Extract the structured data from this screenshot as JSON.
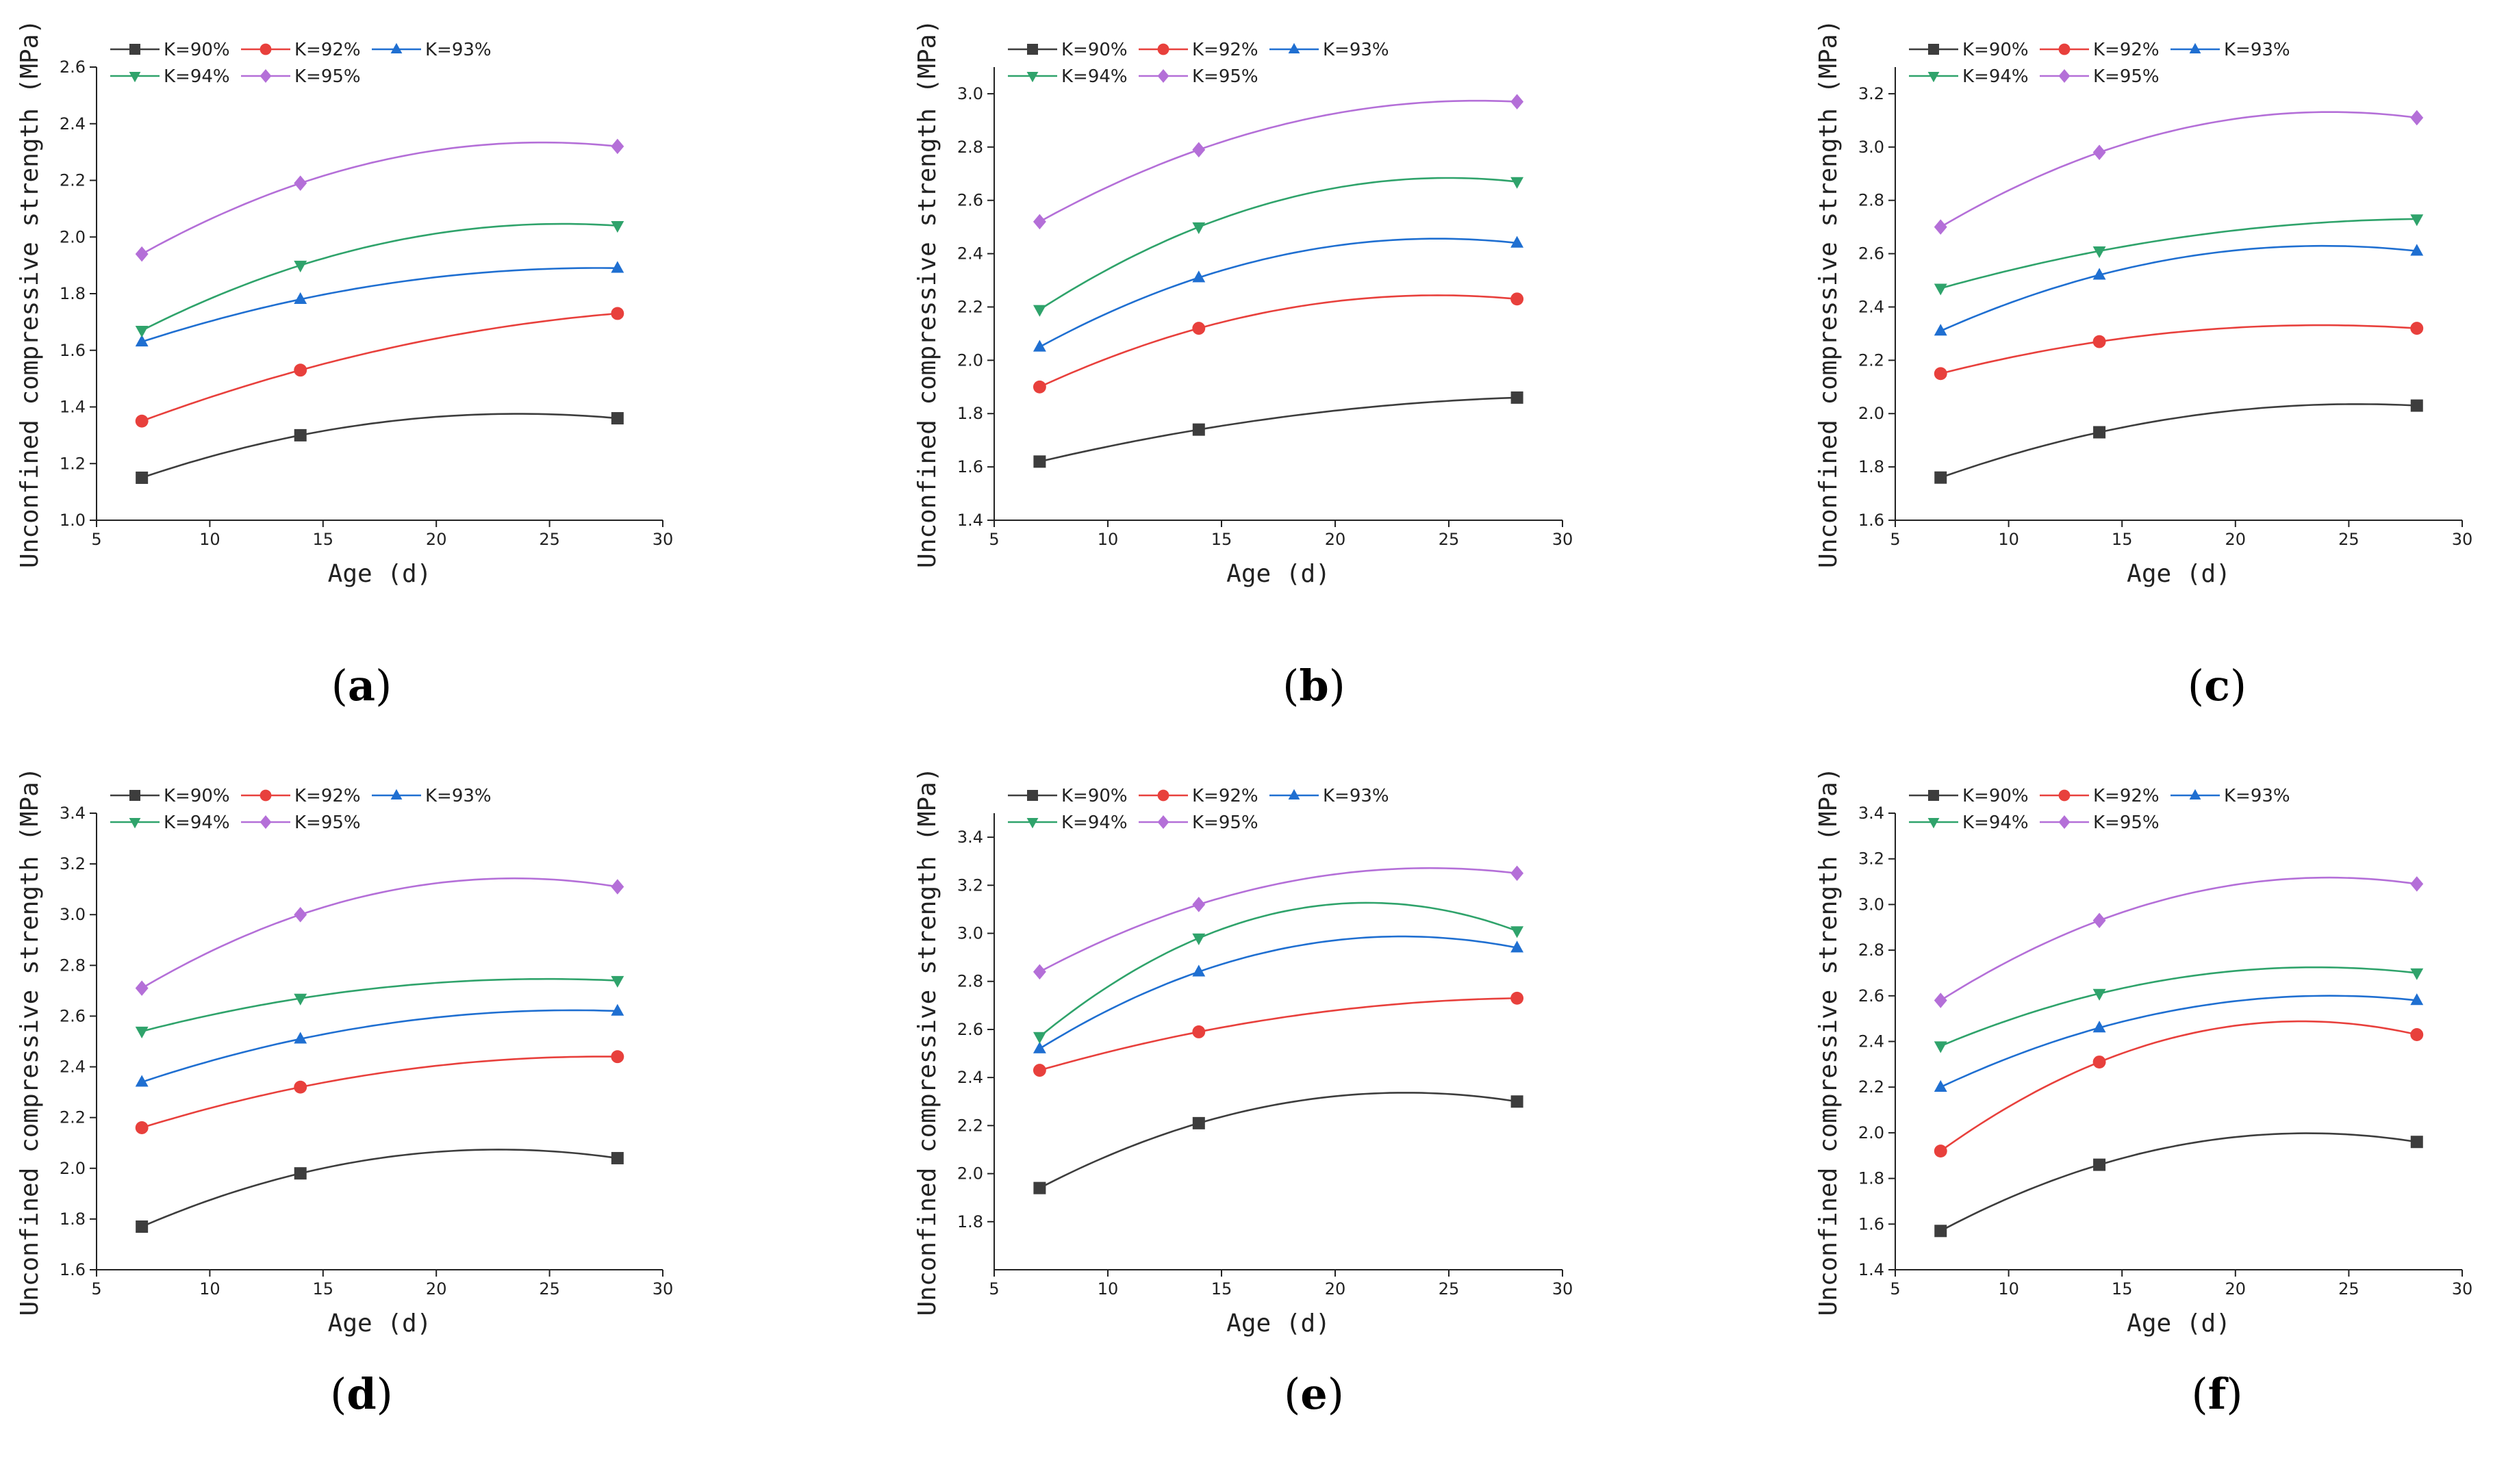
{
  "figure": {
    "series_styles": [
      {
        "name": "K=90%",
        "color": "#3d3d3d",
        "marker": "square"
      },
      {
        "name": "K=92%",
        "color": "#e8403c",
        "marker": "circle"
      },
      {
        "name": "K=93%",
        "color": "#1f6fd1",
        "marker": "triangle-up"
      },
      {
        "name": "K=94%",
        "color": "#2fa36b",
        "marker": "triangle-down"
      },
      {
        "name": "K=95%",
        "color": "#b46fd8",
        "marker": "diamond"
      }
    ]
  },
  "chart_data": [
    {
      "panel": "a",
      "type": "line",
      "xlabel": "Age (d)",
      "ylabel": "Unconfined compressive strength (MPa)",
      "xlim": [
        5,
        30
      ],
      "xticks": [
        5,
        10,
        15,
        20,
        25,
        30
      ],
      "ylim": [
        1.0,
        2.6
      ],
      "yticks": [
        1.0,
        1.2,
        1.4,
        1.6,
        1.8,
        2.0,
        2.2,
        2.4,
        2.6
      ],
      "ytick_labels": [
        "1.0",
        "1.2",
        "1.4",
        "1.6",
        "1.8",
        "2.0",
        "2.2",
        "2.4",
        "2.6"
      ],
      "x": [
        7,
        14,
        28
      ],
      "series": [
        {
          "name": "K=90%",
          "values": [
            1.15,
            1.3,
            1.36
          ]
        },
        {
          "name": "K=92%",
          "values": [
            1.35,
            1.53,
            1.73
          ]
        },
        {
          "name": "K=93%",
          "values": [
            1.63,
            1.78,
            1.89
          ]
        },
        {
          "name": "K=94%",
          "values": [
            1.67,
            1.9,
            2.04
          ]
        },
        {
          "name": "K=95%",
          "values": [
            1.94,
            2.19,
            2.32
          ]
        }
      ],
      "legend": "top-left"
    },
    {
      "panel": "b",
      "type": "line",
      "xlabel": "Age (d)",
      "ylabel": "Unconfined compressive strength (MPa)",
      "xlim": [
        5,
        30
      ],
      "xticks": [
        5,
        10,
        15,
        20,
        25,
        30
      ],
      "ylim": [
        1.4,
        3.1
      ],
      "yticks": [
        1.4,
        1.6,
        1.8,
        2.0,
        2.2,
        2.4,
        2.6,
        2.8,
        3.0
      ],
      "ytick_labels": [
        "1.4",
        "1.6",
        "1.8",
        "2.0",
        "2.2",
        "2.4",
        "2.6",
        "2.8",
        "3.0"
      ],
      "x": [
        7,
        14,
        28
      ],
      "series": [
        {
          "name": "K=90%",
          "values": [
            1.62,
            1.74,
            1.86
          ]
        },
        {
          "name": "K=92%",
          "values": [
            1.9,
            2.12,
            2.23
          ]
        },
        {
          "name": "K=93%",
          "values": [
            2.05,
            2.31,
            2.44
          ]
        },
        {
          "name": "K=94%",
          "values": [
            2.19,
            2.5,
            2.67
          ]
        },
        {
          "name": "K=95%",
          "values": [
            2.52,
            2.79,
            2.97
          ]
        }
      ],
      "legend": "top-left"
    },
    {
      "panel": "c",
      "type": "line",
      "xlabel": "Age (d)",
      "ylabel": "Unconfined compressive strength (MPa)",
      "xlim": [
        5,
        30
      ],
      "xticks": [
        5,
        10,
        15,
        20,
        25,
        30
      ],
      "ylim": [
        1.6,
        3.3
      ],
      "yticks": [
        1.6,
        1.8,
        2.0,
        2.2,
        2.4,
        2.6,
        2.8,
        3.0,
        3.2
      ],
      "ytick_labels": [
        "1.6",
        "1.8",
        "2.0",
        "2.2",
        "2.4",
        "2.6",
        "2.8",
        "3.0",
        "3.2"
      ],
      "x": [
        7,
        14,
        28
      ],
      "series": [
        {
          "name": "K=90%",
          "values": [
            1.76,
            1.93,
            2.03
          ]
        },
        {
          "name": "K=92%",
          "values": [
            2.15,
            2.27,
            2.32
          ]
        },
        {
          "name": "K=93%",
          "values": [
            2.31,
            2.52,
            2.61
          ]
        },
        {
          "name": "K=94%",
          "values": [
            2.47,
            2.61,
            2.73
          ]
        },
        {
          "name": "K=95%",
          "values": [
            2.7,
            2.98,
            3.11
          ]
        }
      ],
      "legend": "top-left"
    },
    {
      "panel": "d",
      "type": "line",
      "xlabel": "Age (d)",
      "ylabel": "Unconfined compressive strength (MPa)",
      "xlim": [
        5,
        30
      ],
      "xticks": [
        5,
        10,
        15,
        20,
        25,
        30
      ],
      "ylim": [
        1.6,
        3.4
      ],
      "yticks": [
        1.6,
        1.8,
        2.0,
        2.2,
        2.4,
        2.6,
        2.8,
        3.0,
        3.2,
        3.4
      ],
      "ytick_labels": [
        "1.6",
        "1.8",
        "2.0",
        "2.2",
        "2.4",
        "2.6",
        "2.8",
        "3.0",
        "3.2",
        "3.4"
      ],
      "x": [
        7,
        14,
        28
      ],
      "series": [
        {
          "name": "K=90%",
          "values": [
            1.77,
            1.98,
            2.04
          ]
        },
        {
          "name": "K=92%",
          "values": [
            2.16,
            2.32,
            2.44
          ]
        },
        {
          "name": "K=93%",
          "values": [
            2.34,
            2.51,
            2.62
          ]
        },
        {
          "name": "K=94%",
          "values": [
            2.54,
            2.67,
            2.74
          ]
        },
        {
          "name": "K=95%",
          "values": [
            2.71,
            3.0,
            3.11
          ]
        }
      ],
      "legend": "top-left"
    },
    {
      "panel": "e",
      "type": "line",
      "xlabel": "Age (d)",
      "ylabel": "Unconfined compressive strength (MPa)",
      "xlim": [
        5,
        30
      ],
      "xticks": [
        5,
        10,
        15,
        20,
        25,
        30
      ],
      "ylim": [
        1.6,
        3.5
      ],
      "yticks": [
        1.8,
        2.0,
        2.2,
        2.4,
        2.6,
        2.8,
        3.0,
        3.2,
        3.4
      ],
      "ytick_labels": [
        "1.8",
        "2.0",
        "2.2",
        "2.4",
        "2.6",
        "2.8",
        "3.0",
        "3.2",
        "3.4"
      ],
      "x": [
        7,
        14,
        28
      ],
      "series": [
        {
          "name": "K=90%",
          "values": [
            1.94,
            2.21,
            2.3
          ]
        },
        {
          "name": "K=92%",
          "values": [
            2.43,
            2.59,
            2.73
          ]
        },
        {
          "name": "K=93%",
          "values": [
            2.52,
            2.84,
            2.94
          ]
        },
        {
          "name": "K=94%",
          "values": [
            2.57,
            2.98,
            3.01
          ]
        },
        {
          "name": "K=95%",
          "values": [
            2.84,
            3.12,
            3.25
          ]
        }
      ],
      "legend": "top-left"
    },
    {
      "panel": "f",
      "type": "line",
      "xlabel": "Age (d)",
      "ylabel": "Unconfined compressive strength (MPa)",
      "xlim": [
        5,
        30
      ],
      "xticks": [
        5,
        10,
        15,
        20,
        25,
        30
      ],
      "ylim": [
        1.4,
        3.4
      ],
      "yticks": [
        1.4,
        1.6,
        1.8,
        2.0,
        2.2,
        2.4,
        2.6,
        2.8,
        3.0,
        3.2,
        3.4
      ],
      "ytick_labels": [
        "1.4",
        "1.6",
        "1.8",
        "2.0",
        "2.2",
        "2.4",
        "2.6",
        "2.8",
        "3.0",
        "3.2",
        "3.4"
      ],
      "x": [
        7,
        14,
        28
      ],
      "series": [
        {
          "name": "K=90%",
          "values": [
            1.57,
            1.86,
            1.96
          ]
        },
        {
          "name": "K=92%",
          "values": [
            1.92,
            2.31,
            2.43
          ]
        },
        {
          "name": "K=93%",
          "values": [
            2.2,
            2.46,
            2.58
          ]
        },
        {
          "name": "K=94%",
          "values": [
            2.38,
            2.61,
            2.7
          ]
        },
        {
          "name": "K=95%",
          "values": [
            2.58,
            2.93,
            3.09
          ]
        }
      ],
      "legend": "top-left"
    }
  ]
}
